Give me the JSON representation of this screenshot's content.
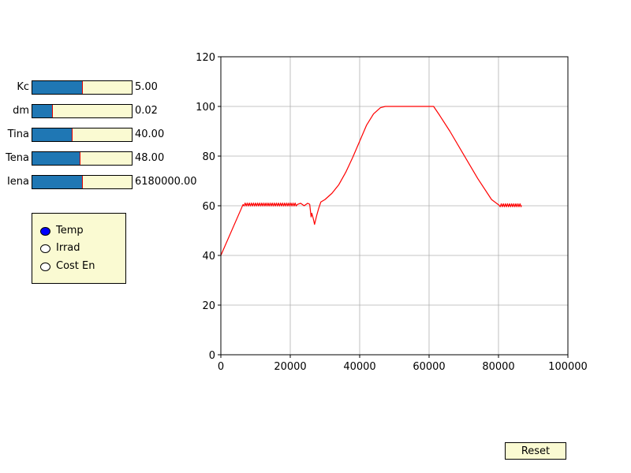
{
  "sliders": [
    {
      "label": "Kc",
      "value_text": "5.00",
      "fraction": 0.5
    },
    {
      "label": "dm",
      "value_text": "0.02",
      "fraction": 0.2
    },
    {
      "label": "Tina",
      "value_text": "40.00",
      "fraction": 0.4
    },
    {
      "label": "Tena",
      "value_text": "48.00",
      "fraction": 0.48
    },
    {
      "label": "Iena",
      "value_text": "6180000.00",
      "fraction": 0.5
    }
  ],
  "radio": {
    "options": [
      "Temp",
      "Irrad",
      "Cost En"
    ],
    "selected": 0
  },
  "reset_label": "Reset",
  "colors": {
    "slider_fill": "#1f77b4",
    "slider_bg": "#fafad2",
    "handle": "#e00000",
    "line": "#ff0000",
    "grid": "#b0b0b0",
    "radio_selected": "#0000ff"
  },
  "chart_data": {
    "type": "line",
    "title": "",
    "xlabel": "",
    "ylabel": "",
    "xlim": [
      0,
      100000
    ],
    "ylim": [
      0,
      120
    ],
    "xticks": [
      "0",
      "20000",
      "40000",
      "60000",
      "80000",
      "100000"
    ],
    "yticks": [
      "0",
      "20",
      "40",
      "60",
      "80",
      "100",
      "120"
    ],
    "grid": true,
    "series": [
      {
        "color": "#ff0000",
        "x": [
          0,
          6400,
          22000,
          23000,
          24000,
          25000,
          25600,
          26000,
          26200,
          26600,
          27000,
          27600,
          28200,
          28800,
          30000,
          32000,
          34000,
          36000,
          38000,
          40000,
          42000,
          44000,
          46000,
          47400,
          50000,
          55000,
          60000,
          61300,
          63000,
          66000,
          70000,
          74000,
          78000,
          80200
        ],
        "y": [
          40,
          60.5,
          60.5,
          61,
          60,
          61,
          60.6,
          55.5,
          57,
          55,
          52.5,
          56,
          59,
          61.5,
          62.5,
          65,
          68.5,
          73.5,
          79.5,
          86,
          92.5,
          97,
          99.5,
          100,
          100,
          100,
          100,
          100,
          96.5,
          90,
          80.5,
          71,
          62.5,
          60.2
        ],
        "oscillation": {
          "from": 6400,
          "to": 22000,
          "period": 600,
          "amplitude": 1.2,
          "center": 60.5
        }
      },
      {
        "color": "#ff0000",
        "x": [
          80200,
          86600
        ],
        "y": [
          60.2,
          60.2
        ],
        "oscillation": {
          "from": 80200,
          "to": 86600,
          "period": 600,
          "amplitude": 1.2,
          "center": 60.2
        }
      }
    ]
  }
}
